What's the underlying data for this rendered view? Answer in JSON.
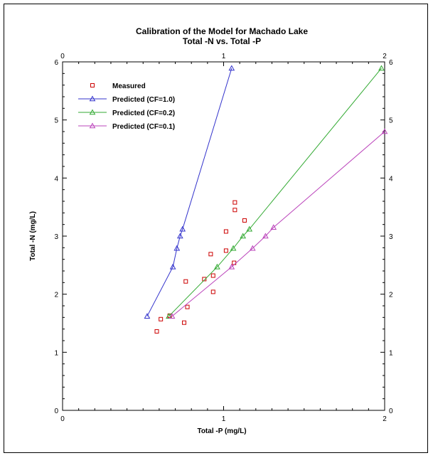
{
  "chart_data": {
    "type": "scatter",
    "title": "Calibration of the Model for Machado Lake",
    "subtitle": "Total -N vs. Total -P",
    "xlabel": "Total -P (mg/L)",
    "ylabel": "Total -N  (mg/L)",
    "xlim": [
      0,
      2
    ],
    "ylim": [
      0,
      6
    ],
    "x_ticks": [
      "0",
      "1",
      "2"
    ],
    "y_ticks": [
      "0",
      "1",
      "2",
      "3",
      "4",
      "5",
      "6"
    ],
    "top_x_ticks": [
      "0",
      "1",
      "2"
    ],
    "right_y_ticks": [
      "0",
      "1",
      "2",
      "3",
      "4",
      "5",
      "6"
    ],
    "legend_position": "top-left",
    "series": [
      {
        "name": "Measured",
        "color": "#cc0000",
        "marker": "square",
        "line": false,
        "points": [
          [
            0.585,
            1.36
          ],
          [
            0.61,
            1.57
          ],
          [
            0.665,
            1.63
          ],
          [
            0.755,
            1.51
          ],
          [
            0.775,
            1.78
          ],
          [
            0.765,
            2.22
          ],
          [
            0.88,
            2.26
          ],
          [
            0.935,
            2.04
          ],
          [
            0.935,
            2.32
          ],
          [
            0.92,
            2.69
          ],
          [
            1.015,
            2.75
          ],
          [
            1.065,
            2.54
          ],
          [
            1.015,
            3.08
          ],
          [
            1.13,
            3.27
          ],
          [
            1.07,
            3.45
          ],
          [
            1.07,
            3.58
          ]
        ]
      },
      {
        "name": "Predicted (CF=1.0)",
        "color": "#3333cc",
        "marker": "triangle",
        "line": true,
        "points": [
          [
            0.525,
            1.62
          ],
          [
            0.685,
            2.47
          ],
          [
            0.71,
            2.79
          ],
          [
            0.73,
            3.0
          ],
          [
            0.745,
            3.12
          ],
          [
            1.05,
            5.89
          ]
        ]
      },
      {
        "name": "Predicted (CF=0.2)",
        "color": "#33aa33",
        "marker": "triangle",
        "line": true,
        "points": [
          [
            0.66,
            1.62
          ],
          [
            0.96,
            2.47
          ],
          [
            1.06,
            2.79
          ],
          [
            1.12,
            3.0
          ],
          [
            1.16,
            3.12
          ],
          [
            1.98,
            5.89
          ]
        ]
      },
      {
        "name": "Predicted (CF=0.1)",
        "color": "#bb44bb",
        "marker": "triangle",
        "line": true,
        "points": [
          [
            0.68,
            1.62
          ],
          [
            1.05,
            2.47
          ],
          [
            1.18,
            2.79
          ],
          [
            1.26,
            3.0
          ],
          [
            1.31,
            3.15
          ],
          [
            2.0,
            4.8
          ]
        ]
      }
    ]
  }
}
